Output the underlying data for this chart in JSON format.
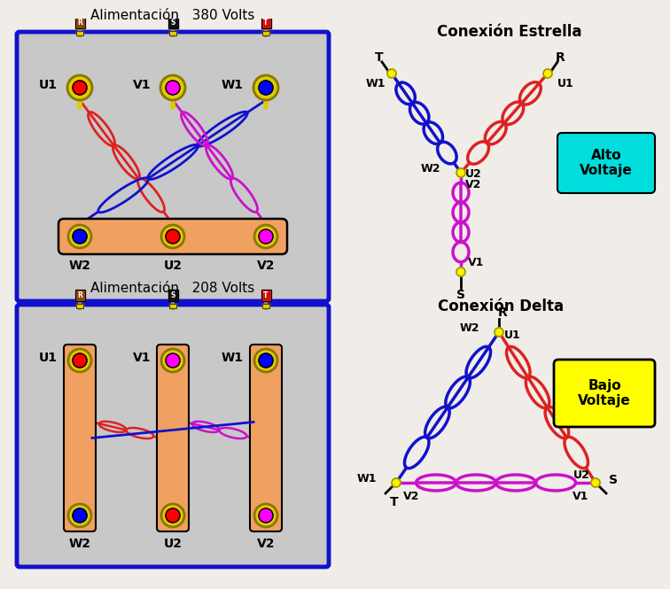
{
  "bg_color": "#f0ede8",
  "title_top": "Alimentación   380 Volts",
  "title_bottom": "Alimentación   208 Volts",
  "estrella_title": "Conexión Estrella",
  "delta_title": "Conexión Delta",
  "alto_voltaje": "Alto\nVoltaje",
  "bajo_voltaje": "Bajo\nVoltaje",
  "coil_red": "#dd2222",
  "coil_blue": "#1111cc",
  "coil_magenta": "#cc11cc",
  "terminal_yellow": "#ffee00",
  "box_fill": "#c8c8c8",
  "box_border": "#1111cc",
  "busbar_fill": "#f0a060",
  "plug_R_color": "#8B4513",
  "plug_S_color": "#111111",
  "plug_T_color": "#cc1111",
  "nut_outer": "#ddcc00",
  "nut_outline": "#887700",
  "cyan_fill": "#00dddd",
  "yellow_fill": "#ffff00"
}
